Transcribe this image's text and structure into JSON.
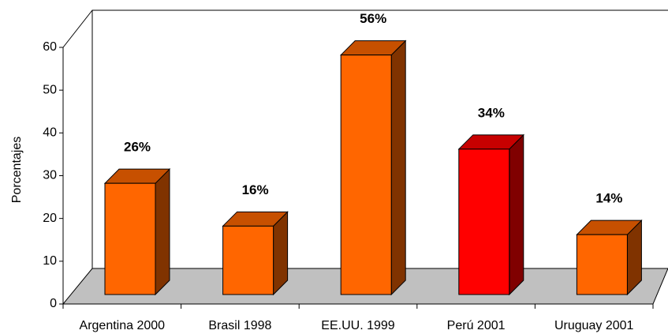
{
  "chart_data": {
    "type": "bar3d",
    "y_label": "Porcentajes",
    "categories": [
      "Argentina 2000",
      "Brasil 1998",
      "EE.UU. 1999",
      "Perú 2001",
      "Uruguay 2001"
    ],
    "values": [
      26,
      16,
      56,
      34,
      14
    ],
    "value_labels": [
      "26%",
      "16%",
      "56%",
      "34%",
      "14%"
    ],
    "colors": [
      "#ff6600",
      "#ff6600",
      "#ff6600",
      "#ff0000",
      "#ff6600"
    ],
    "ylim": [
      0,
      60
    ],
    "yticks": [
      0,
      10,
      20,
      30,
      40,
      50,
      60
    ],
    "grid": false
  }
}
